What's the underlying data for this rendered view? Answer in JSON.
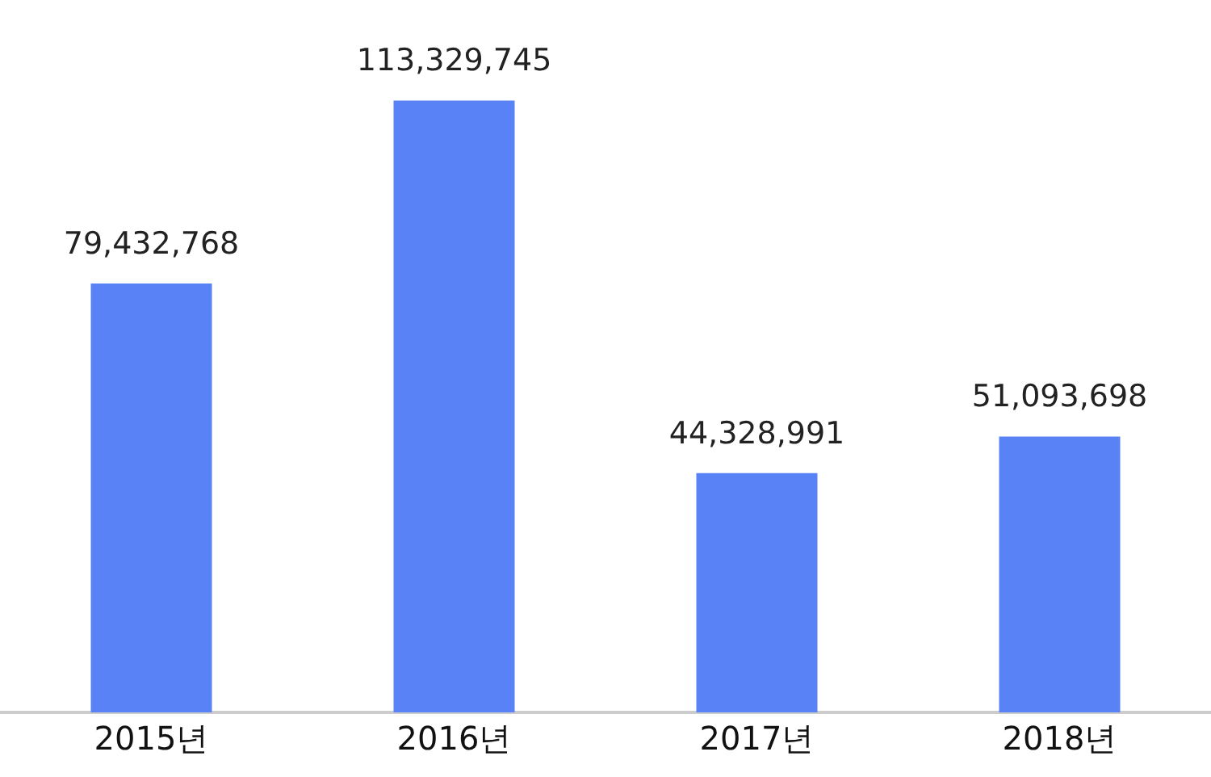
{
  "chart_data": {
    "type": "bar",
    "categories": [
      "2015년",
      "2016년",
      "2017년",
      "2018년"
    ],
    "values": [
      79432768,
      113329745,
      44328991,
      51093698
    ],
    "value_labels": [
      "79,432,768",
      "113,329,745",
      "44,328,991",
      "51,093,698"
    ],
    "color": "#5a82f7",
    "grid": false,
    "legend": false
  }
}
